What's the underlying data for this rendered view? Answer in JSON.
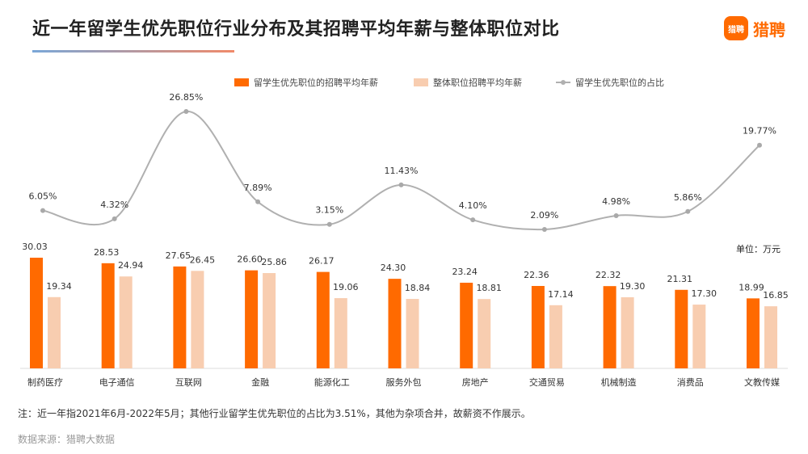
{
  "header": {
    "title": "近一年留学生优先职位行业分布及其招聘平均年薪与整体职位对比",
    "logo_badge": "猎聘",
    "logo_text": "猎聘"
  },
  "footer": {
    "note": "注：近一年指2021年6月-2022年5月；其他行业留学生优先职位的占比为3.51%，其他为杂项合并，故薪资不作展示。",
    "source": "数据来源：猎聘大数据"
  },
  "chart_data": {
    "type": "bar",
    "unit_label": "单位：万元",
    "categories": [
      "制药医疗",
      "电子通信",
      "互联网",
      "金融",
      "能源化工",
      "服务外包",
      "房地产",
      "交通贸易",
      "机械制造",
      "消费品",
      "文教传媒"
    ],
    "series": [
      {
        "name": "留学生优先职位的招聘平均年薪",
        "type": "bar",
        "color": "#ff6a00",
        "values": [
          30.03,
          28.53,
          27.65,
          26.6,
          26.17,
          24.3,
          23.24,
          22.36,
          22.32,
          21.31,
          18.99
        ],
        "labels": [
          "30.03",
          "28.53",
          "27.65",
          "26.60",
          "26.17",
          "24.30",
          "23.24",
          "22.36",
          "22.32",
          "21.31",
          "18.99"
        ]
      },
      {
        "name": "整体职位招聘平均年薪",
        "type": "bar",
        "color": "#f8cdb0",
        "values": [
          19.34,
          24.94,
          26.45,
          25.86,
          19.06,
          18.84,
          18.81,
          17.14,
          19.3,
          17.3,
          16.85
        ],
        "labels": [
          "19.34",
          "24.94",
          "26.45",
          "25.86",
          "19.06",
          "18.84",
          "18.81",
          "17.14",
          "19.30",
          "17.30",
          "16.85"
        ]
      },
      {
        "name": "留学生优先职位的占比",
        "type": "line",
        "color": "#b0b0b0",
        "values": [
          6.05,
          4.32,
          26.85,
          7.89,
          3.15,
          11.43,
          4.1,
          2.09,
          4.98,
          5.86,
          19.77
        ],
        "labels": [
          "6.05%",
          "4.32%",
          "26.85%",
          "7.89%",
          "3.15%",
          "11.43%",
          "4.10%",
          "2.09%",
          "4.98%",
          "5.86%",
          "19.77%"
        ]
      }
    ],
    "legend_position": "top-right",
    "grid": false
  }
}
